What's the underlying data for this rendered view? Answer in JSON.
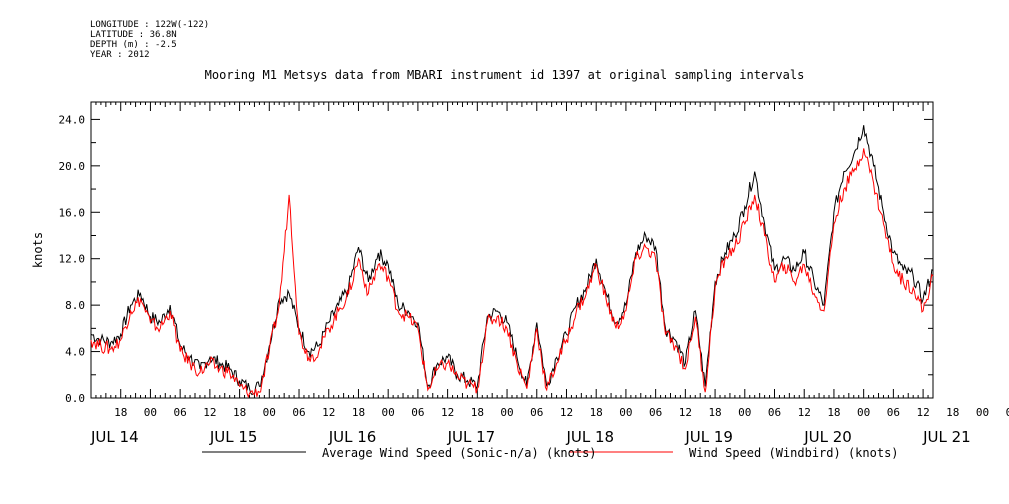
{
  "metadata": {
    "longitude": "LONGITUDE : 122W(-122)",
    "latitude": "LATITUDE : 36.8N",
    "depth": "DEPTH (m) : -2.5",
    "year": "YEAR : 2012"
  },
  "chart_data": {
    "type": "line",
    "title": "Mooring M1 Metsys data from MBARI instrument id 1397 at original sampling intervals",
    "ylabel": "knots",
    "xlabel": "",
    "ylim": [
      0,
      25.5
    ],
    "yticks": [
      "0.0",
      "4.0",
      "8.0",
      "12.0",
      "16.0",
      "20.0",
      "24.0"
    ],
    "xlim_hours": [
      0,
      170
    ],
    "x_hour_ticks": [
      "18",
      "00",
      "06",
      "12",
      "18",
      "00",
      "06",
      "12",
      "18",
      "00",
      "06",
      "12",
      "18",
      "00",
      "06",
      "12",
      "18",
      "00",
      "06",
      "12",
      "18",
      "00",
      "06",
      "12",
      "18",
      "00",
      "06",
      "12",
      "18",
      "00",
      "06",
      "12"
    ],
    "x_day_labels": [
      "JUL 14",
      "JUL 15",
      "JUL 16",
      "JUL 17",
      "JUL 18",
      "JUL 19",
      "JUL 20",
      "JUL 21"
    ],
    "grid": false,
    "legend_position": "bottom",
    "x_note": "x values are hours after JUL 14 12:00",
    "series": [
      {
        "name": "Average Wind Speed (Sonic-n/a) (knots)",
        "color": "#000000",
        "x": [
          0,
          2,
          4,
          6,
          8,
          10,
          12,
          14,
          16,
          18,
          20,
          22,
          24,
          26,
          28,
          30,
          32,
          34,
          36,
          38,
          40,
          42,
          44,
          46,
          48,
          50,
          52,
          54,
          56,
          58,
          60,
          62,
          64,
          66,
          68,
          70,
          72,
          74,
          76,
          78,
          80,
          82,
          84,
          86,
          88,
          90,
          92,
          94,
          96,
          98,
          100,
          102,
          104,
          106,
          108,
          110,
          112,
          114,
          116,
          118,
          120,
          122,
          124,
          126,
          128,
          130,
          132,
          134,
          136,
          138,
          140,
          142,
          144,
          146,
          148,
          150,
          152,
          154,
          156,
          158,
          160,
          162,
          164,
          166,
          168,
          170
        ],
        "values": [
          5.5,
          5.0,
          4.8,
          5.5,
          8.0,
          9.0,
          7.0,
          6.5,
          8.0,
          4.5,
          3.5,
          2.5,
          3.5,
          3.0,
          2.5,
          1.5,
          0.8,
          1.0,
          4.5,
          8.5,
          9.0,
          6.0,
          4.0,
          4.5,
          6.5,
          8.0,
          9.5,
          13.0,
          10.0,
          12.5,
          11.5,
          8.0,
          7.5,
          6.5,
          1.0,
          3.0,
          3.5,
          2.0,
          1.5,
          1.0,
          7.0,
          7.5,
          6.5,
          3.5,
          1.0,
          6.5,
          1.0,
          3.5,
          5.5,
          8.0,
          9.5,
          12.0,
          9.0,
          6.5,
          8.0,
          12.5,
          14.0,
          13.0,
          6.0,
          5.0,
          3.0,
          7.5,
          1.0,
          10.0,
          12.5,
          14.0,
          16.5,
          19.5,
          15.0,
          11.0,
          12.0,
          11.0,
          12.5,
          10.0,
          8.0,
          16.0,
          19.5,
          21.0,
          23.5,
          20.0,
          16.0,
          12.5,
          11.0,
          10.5,
          8.5,
          11.0
        ]
      },
      {
        "name": "Wind Speed (Windbird) (knots)",
        "color": "#ff0000",
        "x": [
          0,
          2,
          4,
          6,
          8,
          10,
          12,
          14,
          16,
          18,
          20,
          22,
          24,
          26,
          28,
          30,
          32,
          34,
          36,
          38,
          40,
          42,
          44,
          46,
          48,
          50,
          52,
          54,
          56,
          58,
          60,
          62,
          64,
          66,
          68,
          70,
          72,
          74,
          76,
          78,
          80,
          82,
          84,
          86,
          88,
          90,
          92,
          94,
          96,
          98,
          100,
          102,
          104,
          106,
          108,
          110,
          112,
          114,
          116,
          118,
          120,
          122,
          124,
          126,
          128,
          130,
          132,
          134,
          136,
          138,
          140,
          142,
          144,
          146,
          148,
          150,
          152,
          154,
          156,
          158,
          160,
          162,
          164,
          166,
          168,
          170
        ],
        "values": [
          5.0,
          4.5,
          4.2,
          5.0,
          7.5,
          8.5,
          6.5,
          6.0,
          7.5,
          4.0,
          3.0,
          2.2,
          3.0,
          2.5,
          2.2,
          1.0,
          0.4,
          0.5,
          4.0,
          8.0,
          17.5,
          5.5,
          3.5,
          4.0,
          6.0,
          7.5,
          9.0,
          12.0,
          9.0,
          11.5,
          10.5,
          7.5,
          7.0,
          6.0,
          0.7,
          2.5,
          3.0,
          1.8,
          1.2,
          0.8,
          6.5,
          7.0,
          6.0,
          3.0,
          0.8,
          6.0,
          0.7,
          3.0,
          5.0,
          7.5,
          9.0,
          11.5,
          8.5,
          6.0,
          7.5,
          12.0,
          13.0,
          12.0,
          5.5,
          4.5,
          2.5,
          7.0,
          0.5,
          9.5,
          12.0,
          13.0,
          15.0,
          17.5,
          14.0,
          10.0,
          11.5,
          10.0,
          11.5,
          9.0,
          7.5,
          15.0,
          18.0,
          19.5,
          21.5,
          18.5,
          15.0,
          11.5,
          10.0,
          9.5,
          7.5,
          10.5
        ]
      }
    ]
  }
}
